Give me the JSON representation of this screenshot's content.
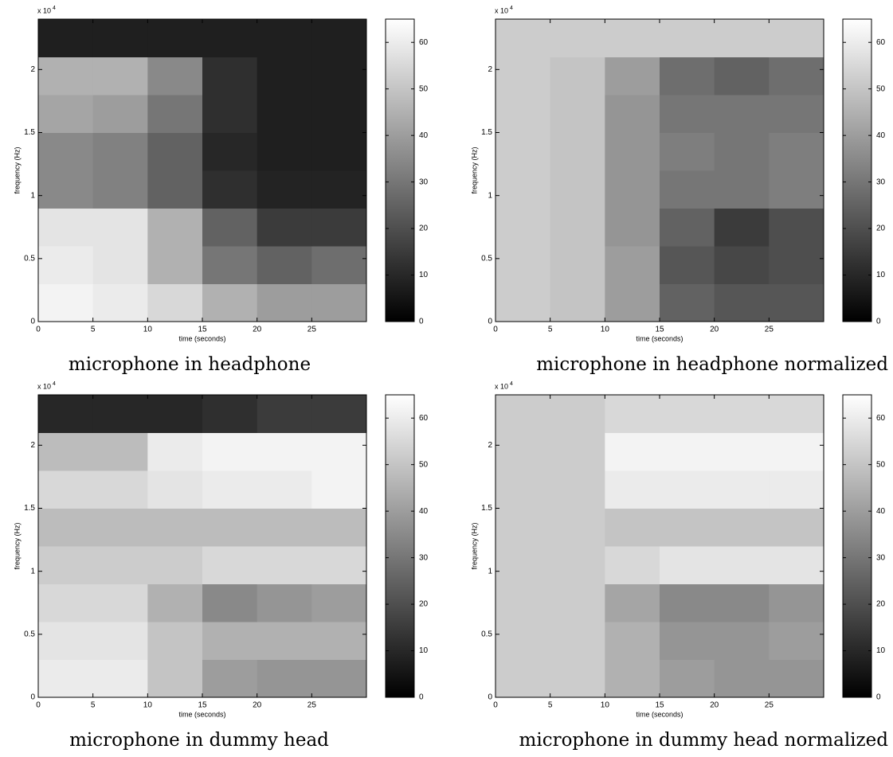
{
  "chart_data": [
    {
      "type": "heatmap",
      "title": "microphone in headphone",
      "x_label": "time (seconds)",
      "y_label": "frequency (Hz)",
      "y_multiplier_base": "x 10",
      "y_multiplier_exp": 4,
      "colormap": "gray",
      "xlim": [
        0,
        30
      ],
      "xticks": [
        0,
        5,
        10,
        15,
        20,
        25
      ],
      "ylim": [
        0,
        2.4
      ],
      "yticks": [
        0,
        0.5,
        1,
        1.5,
        2
      ],
      "clim": [
        0,
        65
      ],
      "cticks": [
        0,
        10,
        20,
        30,
        40,
        50,
        60
      ],
      "xbins": [
        0,
        5,
        10,
        15,
        20,
        25,
        30
      ],
      "ybins": [
        0,
        0.3,
        0.6,
        0.9,
        1.2,
        1.5,
        1.8,
        2.1,
        2.4
      ],
      "z": [
        [
          62,
          60,
          55,
          45,
          40,
          40
        ],
        [
          60,
          58,
          45,
          30,
          25,
          28
        ],
        [
          58,
          58,
          45,
          25,
          15,
          15
        ],
        [
          35,
          33,
          25,
          12,
          9,
          9
        ],
        [
          35,
          33,
          25,
          10,
          8,
          8
        ],
        [
          42,
          40,
          30,
          12,
          8,
          8
        ],
        [
          45,
          45,
          35,
          12,
          8,
          8
        ],
        [
          8,
          8,
          8,
          8,
          8,
          8
        ]
      ]
    },
    {
      "type": "heatmap",
      "title": "microphone in headphone normalized",
      "x_label": "time (seconds)",
      "y_label": "frequency (Hz)",
      "y_multiplier_base": "x 10",
      "y_multiplier_exp": 4,
      "colormap": "gray",
      "xlim": [
        0,
        30
      ],
      "xticks": [
        0,
        5,
        10,
        15,
        20,
        25
      ],
      "ylim": [
        0,
        2.4
      ],
      "yticks": [
        0,
        0.5,
        1,
        1.5,
        2
      ],
      "clim": [
        0,
        65
      ],
      "cticks": [
        0,
        10,
        20,
        30,
        40,
        50,
        60
      ],
      "xbins": [
        0,
        5,
        10,
        15,
        20,
        25,
        30
      ],
      "ybins": [
        0,
        0.3,
        0.6,
        0.9,
        1.2,
        1.5,
        1.8,
        2.1,
        2.4
      ],
      "z": [
        [
          52,
          50,
          40,
          25,
          22,
          22
        ],
        [
          52,
          50,
          40,
          22,
          18,
          20
        ],
        [
          52,
          50,
          38,
          25,
          15,
          20
        ],
        [
          52,
          50,
          38,
          30,
          30,
          32
        ],
        [
          52,
          50,
          38,
          32,
          30,
          32
        ],
        [
          52,
          50,
          38,
          30,
          30,
          30
        ],
        [
          52,
          50,
          40,
          28,
          25,
          28
        ],
        [
          52,
          52,
          52,
          52,
          52,
          52
        ]
      ]
    },
    {
      "type": "heatmap",
      "title": "microphone in dummy head",
      "x_label": "time (seconds)",
      "y_label": "frequency (Hz)",
      "y_multiplier_base": "x 10",
      "y_multiplier_exp": 4,
      "colormap": "gray",
      "xlim": [
        0,
        30
      ],
      "xticks": [
        0,
        5,
        10,
        15,
        20,
        25
      ],
      "ylim": [
        0,
        2.4
      ],
      "yticks": [
        0,
        0.5,
        1,
        1.5,
        2
      ],
      "clim": [
        0,
        65
      ],
      "cticks": [
        0,
        10,
        20,
        30,
        40,
        50,
        60
      ],
      "xbins": [
        0,
        5,
        10,
        15,
        20,
        25,
        30
      ],
      "ybins": [
        0,
        0.3,
        0.6,
        0.9,
        1.2,
        1.5,
        1.8,
        2.1,
        2.4
      ],
      "z": [
        [
          60,
          60,
          50,
          40,
          38,
          38
        ],
        [
          58,
          58,
          50,
          45,
          45,
          45
        ],
        [
          55,
          55,
          45,
          35,
          38,
          40
        ],
        [
          52,
          52,
          52,
          55,
          55,
          55
        ],
        [
          48,
          48,
          48,
          48,
          48,
          48
        ],
        [
          55,
          55,
          58,
          60,
          60,
          62
        ],
        [
          48,
          48,
          60,
          62,
          62,
          62
        ],
        [
          10,
          10,
          10,
          12,
          15,
          15
        ]
      ]
    },
    {
      "type": "heatmap",
      "title": "microphone in dummy head normalized",
      "x_label": "time (seconds)",
      "y_label": "frequency (Hz)",
      "y_multiplier_base": "x 10",
      "y_multiplier_exp": 4,
      "colormap": "gray",
      "xlim": [
        0,
        30
      ],
      "xticks": [
        0,
        5,
        10,
        15,
        20,
        25
      ],
      "ylim": [
        0,
        2.4
      ],
      "yticks": [
        0,
        0.5,
        1,
        1.5,
        2
      ],
      "clim": [
        0,
        65
      ],
      "cticks": [
        0,
        10,
        20,
        30,
        40,
        50,
        60
      ],
      "xbins": [
        0,
        5,
        10,
        15,
        20,
        25,
        30
      ],
      "ybins": [
        0,
        0.3,
        0.6,
        0.9,
        1.2,
        1.5,
        1.8,
        2.1,
        2.4
      ],
      "z": [
        [
          52,
          52,
          45,
          40,
          38,
          38
        ],
        [
          52,
          52,
          45,
          38,
          38,
          40
        ],
        [
          52,
          52,
          42,
          35,
          35,
          38
        ],
        [
          52,
          52,
          55,
          58,
          58,
          58
        ],
        [
          52,
          52,
          50,
          50,
          50,
          50
        ],
        [
          52,
          52,
          60,
          60,
          60,
          60
        ],
        [
          52,
          52,
          62,
          62,
          62,
          62
        ],
        [
          52,
          52,
          55,
          55,
          55,
          55
        ]
      ]
    }
  ]
}
